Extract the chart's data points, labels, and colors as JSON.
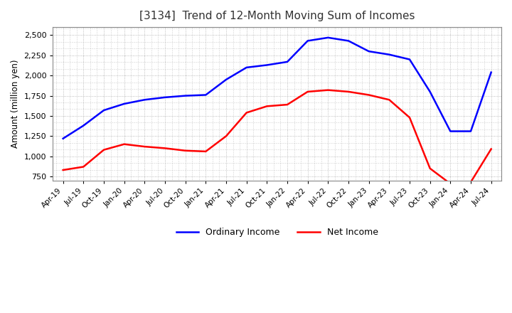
{
  "title": "[3134]  Trend of 12-Month Moving Sum of Incomes",
  "ylabel": "Amount (million yen)",
  "ylim": [
    700,
    2600
  ],
  "yticks": [
    750,
    1000,
    1250,
    1500,
    1750,
    2000,
    2250,
    2500
  ],
  "background_color": "#ffffff",
  "plot_bg_color": "#ffffff",
  "grid_color": "#aaaaaa",
  "ordinary_income_color": "#0000ff",
  "net_income_color": "#ff0000",
  "x_labels": [
    "Apr-19",
    "Jul-19",
    "Oct-19",
    "Jan-20",
    "Apr-20",
    "Jul-20",
    "Oct-20",
    "Jan-21",
    "Apr-21",
    "Jul-21",
    "Oct-21",
    "Jan-22",
    "Apr-22",
    "Jul-22",
    "Oct-22",
    "Jan-23",
    "Apr-23",
    "Jul-23",
    "Oct-23",
    "Jan-24",
    "Apr-24",
    "Jul-24"
  ],
  "ordinary_income": [
    1220,
    1380,
    1570,
    1650,
    1700,
    1730,
    1750,
    1760,
    1950,
    2100,
    2130,
    2170,
    2430,
    2470,
    2430,
    2300,
    2260,
    2200,
    1800,
    1310,
    1310,
    2040
  ],
  "net_income": [
    830,
    870,
    1080,
    1150,
    1120,
    1100,
    1070,
    1060,
    1250,
    1540,
    1620,
    1640,
    1800,
    1820,
    1800,
    1760,
    1700,
    1480,
    850,
    660,
    680,
    1090
  ]
}
